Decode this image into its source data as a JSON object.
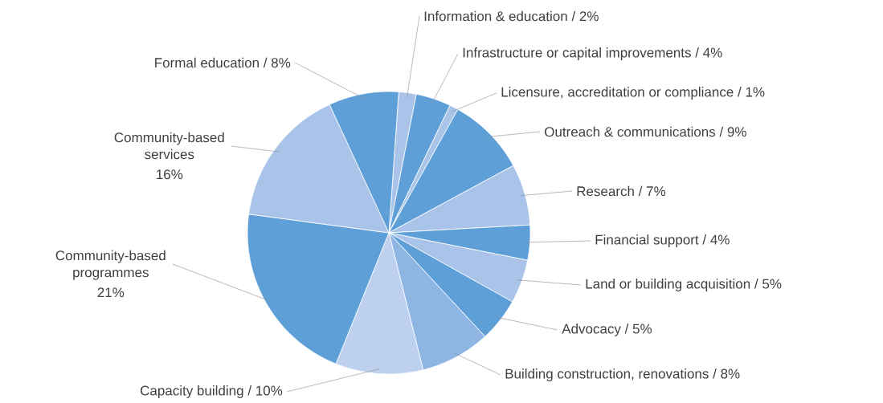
{
  "chart_data": {
    "type": "pie",
    "categories": [
      "Information & education",
      "Infrastructure or capital improvements",
      "Licensure, accreditation or compliance",
      "Outreach & communications",
      "Research",
      "Financial support",
      "Land or building acquisition",
      "Advocacy",
      "Building construction, renovations",
      "Capacity building",
      "Community-based programmes",
      "Community-based services",
      "Formal education"
    ],
    "values": [
      2,
      4,
      1,
      9,
      7,
      4,
      5,
      5,
      8,
      10,
      21,
      16,
      8
    ],
    "value_labels": [
      "/ 2%",
      "/ 4%",
      "/ 1%",
      "/ 9%",
      "/ 7%",
      "/ 4%",
      "/ 5%",
      "/ 5%",
      "/ 8%",
      "/ 10%",
      "21%",
      "16%",
      "/ 8%"
    ],
    "colors": [
      "#a9c4e8",
      "#5f9fd8",
      "#a9c4e8",
      "#5f9fd8",
      "#a9c4e8",
      "#5f9fd8",
      "#a9c4e8",
      "#5f9fd8",
      "#8fb5e3",
      "#bdd1ef",
      "#5f9fd8",
      "#a9c4e8",
      "#5f9fd8"
    ]
  }
}
